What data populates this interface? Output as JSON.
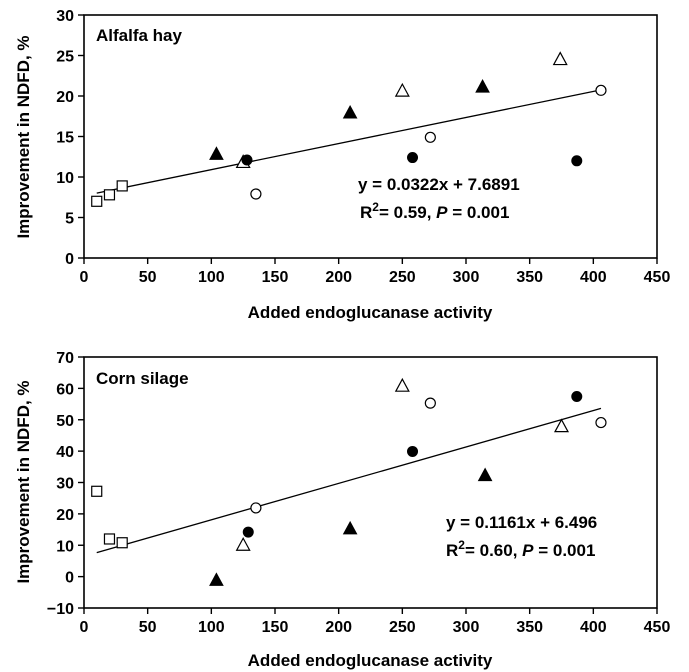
{
  "chart_data": [
    {
      "type": "scatter",
      "title": "Alfalfa hay",
      "xlabel": "Added endoglucanase activity",
      "ylabel": "Improvement in NDFD, %",
      "xlim": [
        0,
        450
      ],
      "ylim": [
        0,
        30
      ],
      "xticks": [
        "0",
        "50",
        "100",
        "150",
        "200",
        "250",
        "300",
        "350",
        "400",
        "450"
      ],
      "yticks": [
        "0",
        "5",
        "10",
        "15",
        "20",
        "25",
        "30"
      ],
      "series": [
        {
          "marker": "open-square",
          "points": [
            [
              10,
              7.0
            ],
            [
              20,
              7.8
            ],
            [
              30,
              8.9
            ]
          ]
        },
        {
          "marker": "filled-triangle",
          "points": [
            [
              104,
              12.8
            ],
            [
              209,
              17.9
            ],
            [
              313,
              21.1
            ]
          ]
        },
        {
          "marker": "open-triangle",
          "points": [
            [
              125,
              11.8
            ],
            [
              250,
              20.6
            ],
            [
              374,
              24.5
            ]
          ]
        },
        {
          "marker": "filled-circle",
          "points": [
            [
              128,
              12.1
            ],
            [
              258,
              12.4
            ],
            [
              387,
              12.0
            ]
          ]
        },
        {
          "marker": "open-circle",
          "points": [
            [
              135,
              7.9
            ],
            [
              272,
              14.9
            ],
            [
              406,
              20.7
            ]
          ]
        }
      ],
      "trendline": {
        "slope": 0.0322,
        "intercept": 7.6891,
        "x_range": [
          10,
          406
        ]
      },
      "equation": "y = 0.0322x + 7.6891",
      "r2_label": "R",
      "r2_sup": "2",
      "r2_value": "= 0.59, ",
      "p_label": "P",
      "p_value": " = 0.001"
    },
    {
      "type": "scatter",
      "title": "Corn silage",
      "xlabel": "Added endoglucanase activity",
      "ylabel": "Improvement in NDFD, %",
      "xlim": [
        0,
        450
      ],
      "ylim": [
        -10,
        70
      ],
      "xticks": [
        "0",
        "50",
        "100",
        "150",
        "200",
        "250",
        "300",
        "350",
        "400",
        "450"
      ],
      "yticks": [
        "−10",
        "0",
        "10",
        "20",
        "30",
        "40",
        "50",
        "60",
        "70"
      ],
      "series": [
        {
          "marker": "open-square",
          "points": [
            [
              10,
              27.2
            ],
            [
              20,
              12.0
            ],
            [
              30,
              10.8
            ]
          ]
        },
        {
          "marker": "filled-triangle",
          "points": [
            [
              104,
              -1.2
            ],
            [
              209,
              15.2
            ],
            [
              315,
              32.2
            ]
          ]
        },
        {
          "marker": "open-triangle",
          "points": [
            [
              125,
              10.0
            ],
            [
              250,
              60.7
            ],
            [
              375,
              47.8
            ]
          ]
        },
        {
          "marker": "filled-circle",
          "points": [
            [
              129,
              14.2
            ],
            [
              258,
              39.9
            ],
            [
              387,
              57.4
            ]
          ]
        },
        {
          "marker": "open-circle",
          "points": [
            [
              135,
              21.9
            ],
            [
              272,
              55.3
            ],
            [
              406,
              49.1
            ]
          ]
        }
      ],
      "trendline": {
        "slope": 0.1161,
        "intercept": 6.496,
        "x_range": [
          10,
          406
        ]
      },
      "equation": "y = 0.1161x + 6.496",
      "r2_label": "R",
      "r2_sup": "2",
      "r2_value": "= 0.60, ",
      "p_label": "P",
      "p_value": " = 0.001"
    }
  ]
}
